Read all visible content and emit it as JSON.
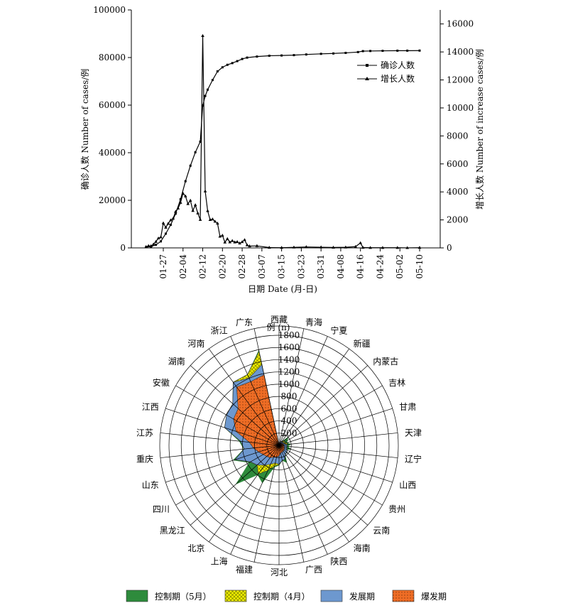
{
  "chart_data": [
    {
      "type": "line",
      "xlabel": "日期 Date (月-日)",
      "ylabel_left": "确诊人数 Number of cases/例",
      "ylabel_right": "增长人数 Number of increase cases/例",
      "y_left_range": [
        0,
        100000
      ],
      "y_left_ticks": [
        0,
        20000,
        40000,
        60000,
        80000,
        100000
      ],
      "y_right_range": [
        0,
        17000
      ],
      "y_right_ticks": [
        0,
        2000,
        4000,
        6000,
        8000,
        10000,
        12000,
        14000,
        16000
      ],
      "x_ticks": [
        "01-27",
        "02-04",
        "02-12",
        "02-20",
        "02-28",
        "03-07",
        "03-15",
        "03-23",
        "03-31",
        "04-08",
        "04-16",
        "04-24",
        "05-02",
        "05-10"
      ],
      "legend_position": "top-right",
      "series": [
        {
          "name": "确诊人数",
          "axis": "left",
          "marker": "square",
          "points": [
            [
              "01-20",
              291
            ],
            [
              "01-22",
              571
            ],
            [
              "01-24",
              1287
            ],
            [
              "01-26",
              2744
            ],
            [
              "01-28",
              5974
            ],
            [
              "01-30",
              9692
            ],
            [
              "02-01",
              14380
            ],
            [
              "02-03",
              20438
            ],
            [
              "02-05",
              28018
            ],
            [
              "02-07",
              34546
            ],
            [
              "02-09",
              40171
            ],
            [
              "02-11",
              44653
            ],
            [
              "02-12",
              59804
            ],
            [
              "02-13",
              63851
            ],
            [
              "02-14",
              66492
            ],
            [
              "02-16",
              70548
            ],
            [
              "02-18",
              74185
            ],
            [
              "02-20",
              75891
            ],
            [
              "02-22",
              76936
            ],
            [
              "02-24",
              77658
            ],
            [
              "02-26",
              78497
            ],
            [
              "02-28",
              79389
            ],
            [
              "03-01",
              79968
            ],
            [
              "03-05",
              80409
            ],
            [
              "03-10",
              80754
            ],
            [
              "03-15",
              80860
            ],
            [
              "03-20",
              81008
            ],
            [
              "03-25",
              81285
            ],
            [
              "03-31",
              81554
            ],
            [
              "04-05",
              81708
            ],
            [
              "04-10",
              81953
            ],
            [
              "04-15",
              82295
            ],
            [
              "04-17",
              82692
            ],
            [
              "04-20",
              82747
            ],
            [
              "04-25",
              82816
            ],
            [
              "05-01",
              82874
            ],
            [
              "05-05",
              82881
            ],
            [
              "05-10",
              82918
            ]
          ]
        },
        {
          "name": "增长人数",
          "axis": "right",
          "marker": "triangle",
          "points": [
            [
              "01-20",
              77
            ],
            [
              "01-21",
              149
            ],
            [
              "01-22",
              131
            ],
            [
              "01-23",
              259
            ],
            [
              "01-24",
              444
            ],
            [
              "01-25",
              688
            ],
            [
              "01-26",
              769
            ],
            [
              "01-27",
              1771
            ],
            [
              "01-28",
              1459
            ],
            [
              "01-29",
              1737
            ],
            [
              "01-30",
              1982
            ],
            [
              "01-31",
              2102
            ],
            [
              "02-01",
              2590
            ],
            [
              "02-02",
              2829
            ],
            [
              "02-03",
              3235
            ],
            [
              "02-04",
              3887
            ],
            [
              "02-05",
              3694
            ],
            [
              "02-06",
              3143
            ],
            [
              "02-07",
              3385
            ],
            [
              "02-08",
              2656
            ],
            [
              "02-09",
              3062
            ],
            [
              "02-10",
              2478
            ],
            [
              "02-11",
              2015
            ],
            [
              "02-12",
              15152
            ],
            [
              "02-13",
              4050
            ],
            [
              "02-14",
              2641
            ],
            [
              "02-15",
              2009
            ],
            [
              "02-16",
              2048
            ],
            [
              "02-17",
              1886
            ],
            [
              "02-18",
              1749
            ],
            [
              "02-19",
              820
            ],
            [
              "02-20",
              889
            ],
            [
              "02-21",
              397
            ],
            [
              "02-22",
              648
            ],
            [
              "02-23",
              409
            ],
            [
              "02-24",
              508
            ],
            [
              "02-25",
              406
            ],
            [
              "02-26",
              433
            ],
            [
              "02-27",
              327
            ],
            [
              "02-28",
              427
            ],
            [
              "02-29",
              573
            ],
            [
              "03-01",
              202
            ],
            [
              "03-02",
              125
            ],
            [
              "03-05",
              143
            ],
            [
              "03-10",
              24
            ],
            [
              "03-15",
              16
            ],
            [
              "03-20",
              41
            ],
            [
              "03-25",
              67
            ],
            [
              "03-31",
              48
            ],
            [
              "04-05",
              30
            ],
            [
              "04-10",
              46
            ],
            [
              "04-14",
              89
            ],
            [
              "04-16",
              352
            ],
            [
              "04-17",
              26
            ],
            [
              "04-20",
              11
            ],
            [
              "04-25",
              12
            ],
            [
              "05-01",
              12
            ],
            [
              "05-05",
              2
            ],
            [
              "05-10",
              17
            ]
          ]
        }
      ]
    },
    {
      "type": "radar",
      "axis_label": "例 (n)",
      "r_range": [
        0,
        1800
      ],
      "r_ticks": [
        200,
        400,
        600,
        800,
        1000,
        1200,
        1400,
        1600,
        1800
      ],
      "categories": [
        "西藏",
        "青海",
        "宁夏",
        "新疆",
        "内蒙古",
        "吉林",
        "甘肃",
        "天津",
        "辽宁",
        "山西",
        "贵州",
        "云南",
        "海南",
        "陕西",
        "广西",
        "河北",
        "福建",
        "上海",
        "北京",
        "黑龙江",
        "四川",
        "山东",
        "重庆",
        "江苏",
        "江西",
        "安徽",
        "湖南",
        "河南",
        "浙江",
        "广东"
      ],
      "legend_position": "bottom",
      "series": [
        {
          "name": "控制期（5月）",
          "color": "#2e8b3c",
          "values": [
            1,
            18,
            75,
            76,
            201,
            155,
            139,
            192,
            145,
            198,
            147,
            185,
            168,
            308,
            254,
            327,
            363,
            671,
            593,
            945,
            561,
            788,
            579,
            653,
            937,
            991,
            1019,
            1276,
            1268,
            1588
          ]
        },
        {
          "name": "控制期（4月）",
          "color": "#f2f200",
          "values": [
            1,
            18,
            75,
            76,
            120,
            100,
            136,
            136,
            125,
            133,
            146,
            184,
            168,
            245,
            254,
            318,
            346,
            450,
            580,
            484,
            543,
            760,
            576,
            631,
            937,
            990,
            1019,
            1276,
            1268,
            1570
          ]
        },
        {
          "name": "发展期",
          "color": "#6d98cf",
          "values": [
            1,
            18,
            71,
            76,
            75,
            90,
            91,
            135,
            125,
            133,
            146,
            174,
            168,
            245,
            252,
            310,
            294,
            337,
            400,
            480,
            538,
            756,
            573,
            631,
            935,
            990,
            1018,
            1272,
            1205,
            1350
          ]
        },
        {
          "name": "爆发期",
          "color": "#ef6d25",
          "values": [
            1,
            18,
            40,
            40,
            40,
            60,
            70,
            80,
            80,
            90,
            100,
            110,
            115,
            120,
            130,
            170,
            200,
            210,
            250,
            270,
            300,
            350,
            420,
            490,
            740,
            860,
            900,
            1180,
            1140,
            1180
          ]
        }
      ]
    }
  ]
}
